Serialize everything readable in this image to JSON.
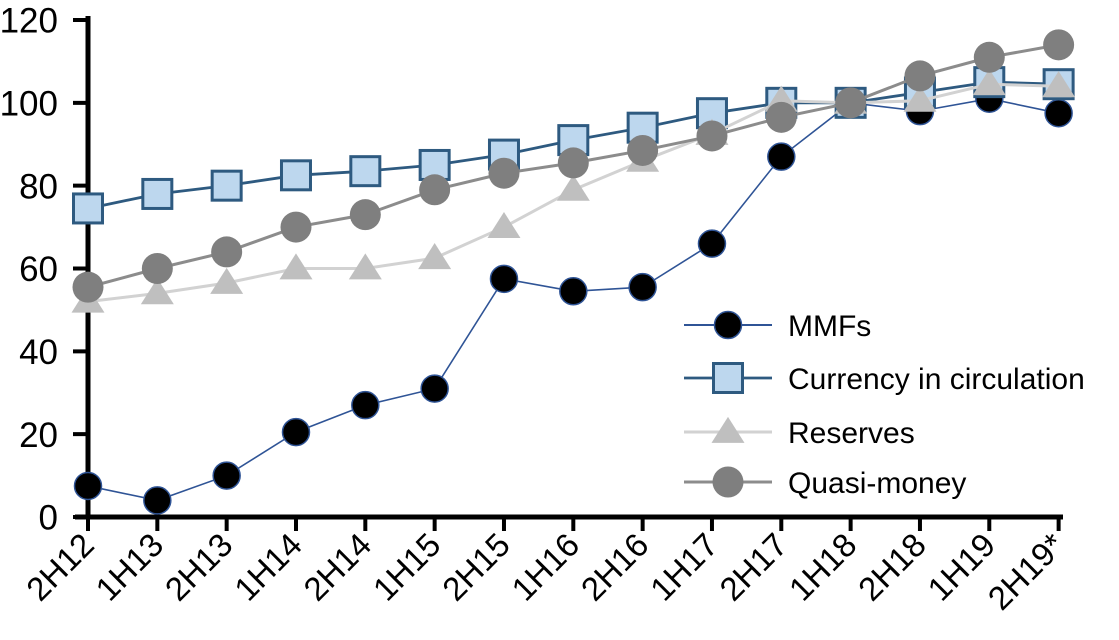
{
  "chart_data": {
    "type": "line",
    "title": "",
    "xlabel": "",
    "ylabel": "",
    "categories": [
      "2H12",
      "1H13",
      "2H13",
      "1H14",
      "2H14",
      "1H15",
      "2H15",
      "1H16",
      "2H16",
      "1H17",
      "2H17",
      "1H18",
      "2H18",
      "1H19",
      "2H19*"
    ],
    "yticks": [
      0,
      20,
      40,
      60,
      80,
      100,
      120
    ],
    "ylim": [
      0,
      120
    ],
    "grid": false,
    "legend_position": "inside-right",
    "axis_color": "#000000",
    "background_color": "#ffffff",
    "series": [
      {
        "name": "MMFs",
        "marker": "circle",
        "line_color": "#2F5496",
        "line_width": 1.6,
        "marker_fill": "#000000",
        "marker_edge": "#2F5496",
        "marker_edge_width": 1.5,
        "marker_size": 27,
        "values": [
          7.5,
          4,
          10,
          20.5,
          27,
          31,
          57.5,
          54.5,
          55.5,
          66,
          87,
          100,
          98,
          101,
          97.5
        ]
      },
      {
        "name": "Currency in circulation",
        "marker": "square",
        "line_color": "#2E5A80",
        "line_width": 2.8,
        "marker_fill": "#BDD7EE",
        "marker_edge": "#2E5A80",
        "marker_edge_width": 3,
        "marker_size": 29,
        "values": [
          74.5,
          78,
          80,
          82.5,
          83.5,
          85,
          87.5,
          91,
          94,
          97.5,
          100,
          100,
          102.5,
          105,
          104.5
        ]
      },
      {
        "name": "Reserves",
        "marker": "triangle",
        "line_color": "#D2D2D2",
        "line_width": 3,
        "marker_fill": "#BFBFBF",
        "marker_edge": "none",
        "marker_edge_width": 0,
        "marker_size": 31,
        "values": [
          52,
          54,
          56.5,
          60,
          60,
          62.5,
          70,
          79,
          86,
          92.5,
          100.5,
          100,
          100.5,
          104.5,
          104
        ]
      },
      {
        "name": "Quasi-money",
        "marker": "circle",
        "line_color": "#8C8C8C",
        "line_width": 3,
        "marker_fill": "#7F7F7F",
        "marker_edge": "none",
        "marker_edge_width": 0,
        "marker_size": 31,
        "values": [
          55.5,
          60,
          64,
          70,
          73,
          79,
          83,
          85.5,
          88.5,
          92,
          96.5,
          100,
          106.5,
          111,
          114
        ]
      }
    ]
  }
}
